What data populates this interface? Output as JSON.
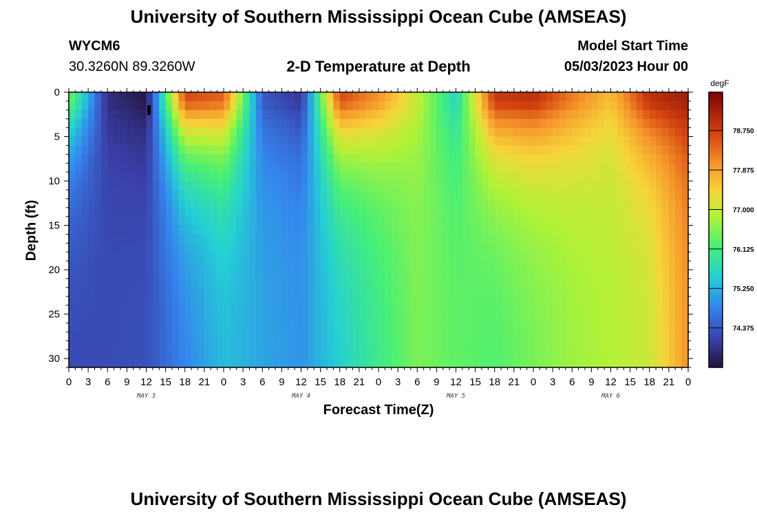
{
  "header": {
    "title": "University of Southern Mississippi Ocean Cube (AMSEAS)",
    "station": "WYCM6",
    "coords": "30.3260N  89.3260W",
    "subtitle": "2-D Temperature at Depth",
    "model_start_label": "Model Start Time",
    "model_start_value": "05/03/2023 Hour 00"
  },
  "footer": {
    "title": "University of Southern Mississippi Ocean Cube (AMSEAS)"
  },
  "chart_data": {
    "type": "heatmap",
    "title": "2-D Temperature at Depth",
    "xlabel": "Forecast Time(Z)",
    "ylabel": "Depth (ft)",
    "x_range_hours": [
      0,
      96
    ],
    "x_tick_labels": [
      "0",
      "3",
      "6",
      "9",
      "12",
      "15",
      "18",
      "21",
      "0",
      "3",
      "6",
      "9",
      "12",
      "15",
      "18",
      "21",
      "0",
      "3",
      "6",
      "9",
      "12",
      "15",
      "18",
      "21",
      "0",
      "3",
      "6",
      "9",
      "12",
      "15",
      "18",
      "21",
      "0"
    ],
    "date_labels": [
      {
        "text": "MAY 3",
        "hour": 12
      },
      {
        "text": "MAY 4",
        "hour": 36
      },
      {
        "text": "MAY 5",
        "hour": 60
      },
      {
        "text": "MAY 6",
        "hour": 84
      }
    ],
    "ylim": [
      0,
      31
    ],
    "y_ticks": [
      0,
      5,
      10,
      15,
      20,
      25,
      30
    ],
    "y_tick_labels": [
      "0",
      "5",
      "10",
      "15",
      "20",
      "25",
      "30"
    ],
    "colorbar": {
      "unit": "degF",
      "min": 73.5,
      "max": 79.6,
      "tick_values": [
        78.75,
        77.875,
        77.0,
        76.125,
        75.25,
        74.375
      ],
      "tick_labels": [
        "78.750",
        "77.875",
        "77.000",
        "76.125",
        "75.250",
        "74.375"
      ]
    },
    "approx_surface_deg_f_by_hour": [
      [
        0,
        76.5
      ],
      [
        6,
        73.9
      ],
      [
        12,
        73.6
      ],
      [
        18,
        78.6
      ],
      [
        24,
        78.4
      ],
      [
        30,
        74.4
      ],
      [
        36,
        74.0
      ],
      [
        42,
        78.6
      ],
      [
        48,
        78.0
      ],
      [
        54,
        77.0
      ],
      [
        60,
        75.6
      ],
      [
        66,
        78.8
      ],
      [
        72,
        78.9
      ],
      [
        78,
        78.2
      ],
      [
        84,
        77.6
      ],
      [
        90,
        78.9
      ],
      [
        96,
        79.2
      ]
    ]
  }
}
